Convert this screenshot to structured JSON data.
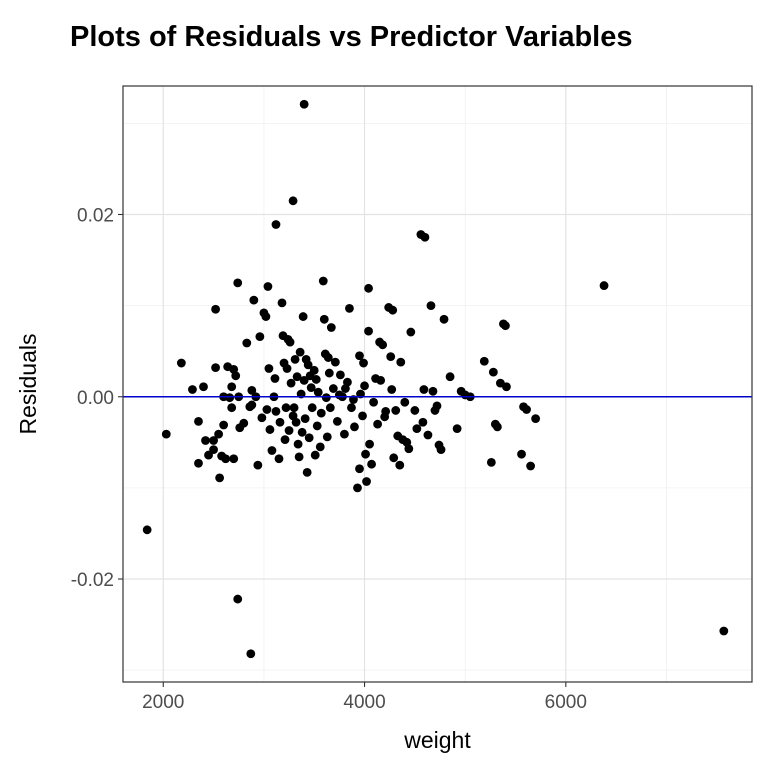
{
  "chart_data": {
    "type": "scatter",
    "title": "Plots of Residuals vs Predictor Variables",
    "xlabel": "weight",
    "ylabel": "Residuals",
    "xlim": [
      1600,
      7850
    ],
    "ylim": [
      -0.0313,
      0.0341
    ],
    "x_ticks": [
      2000,
      4000,
      6000
    ],
    "x_tick_labels": [
      "2000",
      "4000",
      "6000"
    ],
    "y_ticks": [
      -0.02,
      0.0,
      0.02
    ],
    "y_tick_labels": [
      "-0.02",
      "0.00",
      "0.02"
    ],
    "x_minor_gridlines": [
      3000,
      5000,
      7000
    ],
    "y_minor_gridlines": [
      -0.03,
      -0.01,
      0.01,
      0.03
    ],
    "grid": true,
    "reference_line": {
      "y": 0.0,
      "color": "#0000cc"
    },
    "point_color": "#000000",
    "series": [
      {
        "name": "residuals",
        "points": [
          [
            1840,
            -0.0146
          ],
          [
            2030,
            -0.0041
          ],
          [
            2180,
            0.0037
          ],
          [
            2290,
            0.0008
          ],
          [
            2350,
            -0.0073
          ],
          [
            2350,
            -0.0027
          ],
          [
            2400,
            0.0011
          ],
          [
            2420,
            -0.0048
          ],
          [
            2450,
            -0.0064
          ],
          [
            2500,
            -0.0048
          ],
          [
            2500,
            -0.0058
          ],
          [
            2520,
            0.0096
          ],
          [
            2520,
            0.0032
          ],
          [
            2550,
            -0.0041
          ],
          [
            2560,
            -0.0089
          ],
          [
            2580,
            -0.0065
          ],
          [
            2600,
            -0.0031
          ],
          [
            2600,
            0.0
          ],
          [
            2620,
            -0.0068
          ],
          [
            2640,
            0.0033
          ],
          [
            2660,
            -0.0001
          ],
          [
            2680,
            0.0011
          ],
          [
            2680,
            -0.0012
          ],
          [
            2700,
            -0.0068
          ],
          [
            2700,
            0.003
          ],
          [
            2720,
            0.0023
          ],
          [
            2740,
            -0.0222
          ],
          [
            2740,
            0.0125
          ],
          [
            2750,
            0.0
          ],
          [
            2760,
            -0.0034
          ],
          [
            2800,
            -0.0029
          ],
          [
            2830,
            0.0059
          ],
          [
            2860,
            -0.0011
          ],
          [
            2870,
            -0.0282
          ],
          [
            2880,
            -0.0009
          ],
          [
            2880,
            0.0007
          ],
          [
            2900,
            0.0106
          ],
          [
            2920,
            0.0
          ],
          [
            2940,
            -0.0075
          ],
          [
            2960,
            0.0066
          ],
          [
            2980,
            -0.0023
          ],
          [
            3000,
            0.0092
          ],
          [
            3020,
            0.0088
          ],
          [
            3030,
            -0.0014
          ],
          [
            3040,
            0.0121
          ],
          [
            3050,
            0.0031
          ],
          [
            3060,
            -0.0036
          ],
          [
            3080,
            -0.0059
          ],
          [
            3100,
            0.0
          ],
          [
            3110,
            0.002
          ],
          [
            3120,
            0.0189
          ],
          [
            3120,
            -0.0016
          ],
          [
            3150,
            -0.0068
          ],
          [
            3160,
            -0.0028
          ],
          [
            3180,
            0.0103
          ],
          [
            3190,
            0.0067
          ],
          [
            3200,
            0.0037
          ],
          [
            3210,
            -0.0047
          ],
          [
            3220,
            -0.0012
          ],
          [
            3230,
            0.0031
          ],
          [
            3240,
            0.0063
          ],
          [
            3250,
            -0.0037
          ],
          [
            3260,
            0.006
          ],
          [
            3270,
            0.0015
          ],
          [
            3290,
            0.0215
          ],
          [
            3290,
            -0.0021
          ],
          [
            3300,
            -0.0012
          ],
          [
            3310,
            0.0041
          ],
          [
            3320,
            -0.0028
          ],
          [
            3330,
            0.0022
          ],
          [
            3340,
            -0.0052
          ],
          [
            3350,
            -0.0066
          ],
          [
            3360,
            0.0049
          ],
          [
            3370,
            0.0003
          ],
          [
            3380,
            -0.0039
          ],
          [
            3390,
            0.0088
          ],
          [
            3400,
            0.0321
          ],
          [
            3400,
            0.0018
          ],
          [
            3410,
            -0.0024
          ],
          [
            3420,
            0.0041
          ],
          [
            3430,
            -0.0083
          ],
          [
            3440,
            0.0035
          ],
          [
            3450,
            -0.0045
          ],
          [
            3460,
            0.0023
          ],
          [
            3470,
            0.001
          ],
          [
            3480,
            -0.0012
          ],
          [
            3500,
            0.0029
          ],
          [
            3510,
            -0.0064
          ],
          [
            3520,
            0.0019
          ],
          [
            3530,
            -0.0032
          ],
          [
            3540,
            0.0005
          ],
          [
            3560,
            -0.0055
          ],
          [
            3570,
            -0.0018
          ],
          [
            3590,
            0.0127
          ],
          [
            3600,
            0.0085
          ],
          [
            3610,
            0.0047
          ],
          [
            3620,
            -0.0001
          ],
          [
            3630,
            -0.0044
          ],
          [
            3640,
            0.0043
          ],
          [
            3650,
            0.0026
          ],
          [
            3660,
            -0.0012
          ],
          [
            3670,
            0.0076
          ],
          [
            3690,
            0.0009
          ],
          [
            3710,
            0.0038
          ],
          [
            3730,
            -0.0027
          ],
          [
            3750,
            0.0002
          ],
          [
            3760,
            0.0024
          ],
          [
            3780,
            0.0
          ],
          [
            3800,
            -0.0041
          ],
          [
            3810,
            0.0009
          ],
          [
            3830,
            0.0016
          ],
          [
            3850,
            0.0097
          ],
          [
            3870,
            -0.0012
          ],
          [
            3890,
            -0.0003
          ],
          [
            3900,
            -0.0033
          ],
          [
            3930,
            -0.01
          ],
          [
            3950,
            -0.0079
          ],
          [
            3950,
            0.0045
          ],
          [
            3960,
            0.0003
          ],
          [
            3980,
            -0.0021
          ],
          [
            3990,
            0.0037
          ],
          [
            4000,
            0.0012
          ],
          [
            4010,
            -0.0063
          ],
          [
            4020,
            -0.0093
          ],
          [
            4040,
            0.0119
          ],
          [
            4040,
            0.0072
          ],
          [
            4050,
            -0.0052
          ],
          [
            4070,
            -0.0074
          ],
          [
            4090,
            -0.0006
          ],
          [
            4110,
            0.002
          ],
          [
            4130,
            -0.003
          ],
          [
            4150,
            0.006
          ],
          [
            4160,
            0.0018
          ],
          [
            4180,
            0.0057
          ],
          [
            4200,
            -0.0022
          ],
          [
            4210,
            -0.0016
          ],
          [
            4240,
            0.0098
          ],
          [
            4260,
            0.0044
          ],
          [
            4270,
            0.0008
          ],
          [
            4280,
            0.0095
          ],
          [
            4290,
            -0.0067
          ],
          [
            4310,
            -0.0015
          ],
          [
            4330,
            -0.0043
          ],
          [
            4350,
            -0.0075
          ],
          [
            4360,
            0.0038
          ],
          [
            4380,
            -0.0047
          ],
          [
            4400,
            -0.0006
          ],
          [
            4420,
            -0.005
          ],
          [
            4440,
            -0.0057
          ],
          [
            4460,
            0.0071
          ],
          [
            4500,
            -0.0015
          ],
          [
            4520,
            -0.0035
          ],
          [
            4560,
            0.0178
          ],
          [
            4580,
            -0.0028
          ],
          [
            4590,
            0.0008
          ],
          [
            4600,
            0.0175
          ],
          [
            4630,
            -0.0042
          ],
          [
            4660,
            0.01
          ],
          [
            4680,
            0.0006
          ],
          [
            4700,
            -0.0015
          ],
          [
            4720,
            -0.001
          ],
          [
            4740,
            -0.0053
          ],
          [
            4760,
            -0.0058
          ],
          [
            4790,
            0.0085
          ],
          [
            4850,
            0.0022
          ],
          [
            4920,
            -0.0035
          ],
          [
            4960,
            0.0006
          ],
          [
            5000,
            0.0002
          ],
          [
            5050,
            0.0
          ],
          [
            5190,
            0.0039
          ],
          [
            5260,
            -0.0072
          ],
          [
            5280,
            0.0027
          ],
          [
            5300,
            -0.003
          ],
          [
            5320,
            -0.0033
          ],
          [
            5350,
            0.0015
          ],
          [
            5380,
            0.008
          ],
          [
            5400,
            0.0078
          ],
          [
            5410,
            0.0011
          ],
          [
            5560,
            -0.0063
          ],
          [
            5580,
            -0.0011
          ],
          [
            5610,
            -0.0014
          ],
          [
            5650,
            -0.0076
          ],
          [
            5700,
            -0.0024
          ],
          [
            6380,
            0.0122
          ],
          [
            7570,
            -0.0257
          ]
        ]
      }
    ]
  }
}
